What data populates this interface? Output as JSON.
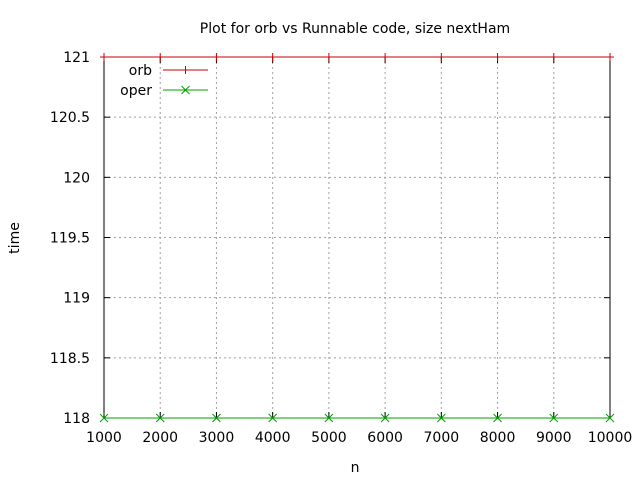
{
  "chart_data": {
    "type": "line",
    "title": "Plot for orb vs Runnable code, size nextHam",
    "xlabel": "n",
    "ylabel": "time",
    "xlim": [
      1000,
      10000
    ],
    "ylim": [
      118,
      121
    ],
    "xticks": [
      1000,
      2000,
      3000,
      4000,
      5000,
      6000,
      7000,
      8000,
      9000,
      10000
    ],
    "yticks": [
      118,
      118.5,
      119,
      119.5,
      120,
      120.5,
      121
    ],
    "xtick_labels": [
      "1000",
      "2000",
      "3000",
      "4000",
      "5000",
      "6000",
      "7000",
      "8000",
      "9000",
      "10000"
    ],
    "ytick_labels": [
      "118",
      "118.5",
      "119",
      "119.5",
      "120",
      "120.5",
      "121"
    ],
    "grid": true,
    "legend_position": "top-left",
    "x": [
      1000,
      2000,
      3000,
      4000,
      5000,
      6000,
      7000,
      8000,
      9000,
      10000
    ],
    "series": [
      {
        "name": "orb",
        "color": "#cc0000",
        "marker": "plus",
        "values": [
          121,
          121,
          121,
          121,
          121,
          121,
          121,
          121,
          121,
          121
        ]
      },
      {
        "name": "oper",
        "color": "#00a000",
        "marker": "cross",
        "values": [
          118,
          118,
          118,
          118,
          118,
          118,
          118,
          118,
          118,
          118
        ]
      }
    ]
  }
}
